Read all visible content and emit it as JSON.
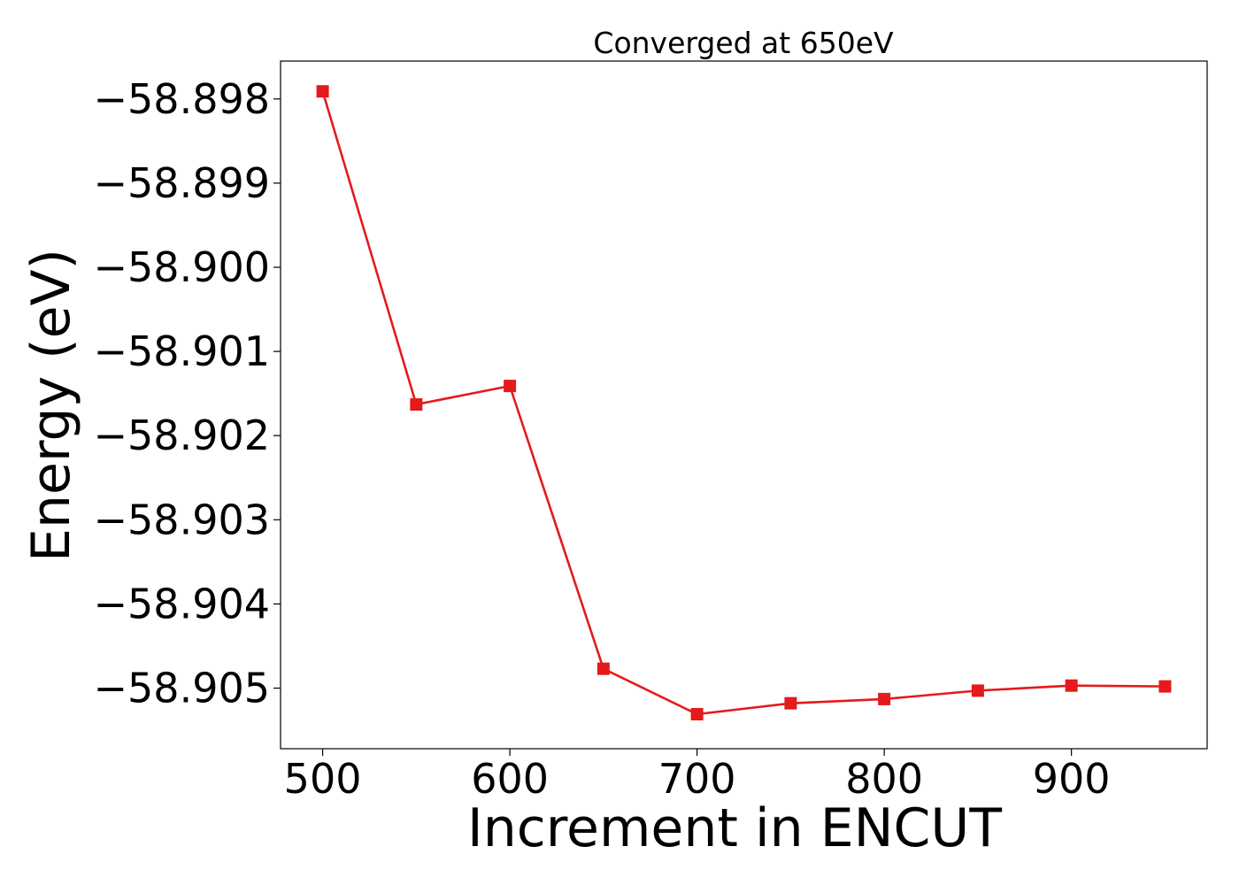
{
  "chart_data": {
    "type": "line",
    "title": "Converged at 650eV",
    "xlabel": "Increment in ENCUT",
    "ylabel": "Energy (eV)",
    "x_ticks": [
      "500",
      "600",
      "700",
      "800",
      "900"
    ],
    "x_tick_values": [
      500,
      600,
      700,
      800,
      900
    ],
    "y_ticks": [
      "−58.898",
      "−58.899",
      "−58.900",
      "−58.901",
      "−58.902",
      "−58.903",
      "−58.904",
      "−58.905"
    ],
    "y_tick_values": [
      -58.898,
      -58.899,
      -58.9,
      -58.901,
      -58.902,
      -58.903,
      -58.904,
      -58.905
    ],
    "xlim": [
      477.5,
      972.5
    ],
    "ylim": [
      -58.90572,
      -58.89755
    ],
    "grid": false,
    "legend": "none",
    "series": [
      {
        "color": "#e41a1c",
        "marker": "square",
        "x": [
          500,
          550,
          600,
          650,
          700,
          750,
          800,
          850,
          900,
          950
        ],
        "y": [
          -58.89791,
          -58.90163,
          -58.90141,
          -58.90477,
          -58.90531,
          -58.90518,
          -58.90513,
          -58.90503,
          -58.90497,
          -58.90498
        ]
      }
    ]
  }
}
